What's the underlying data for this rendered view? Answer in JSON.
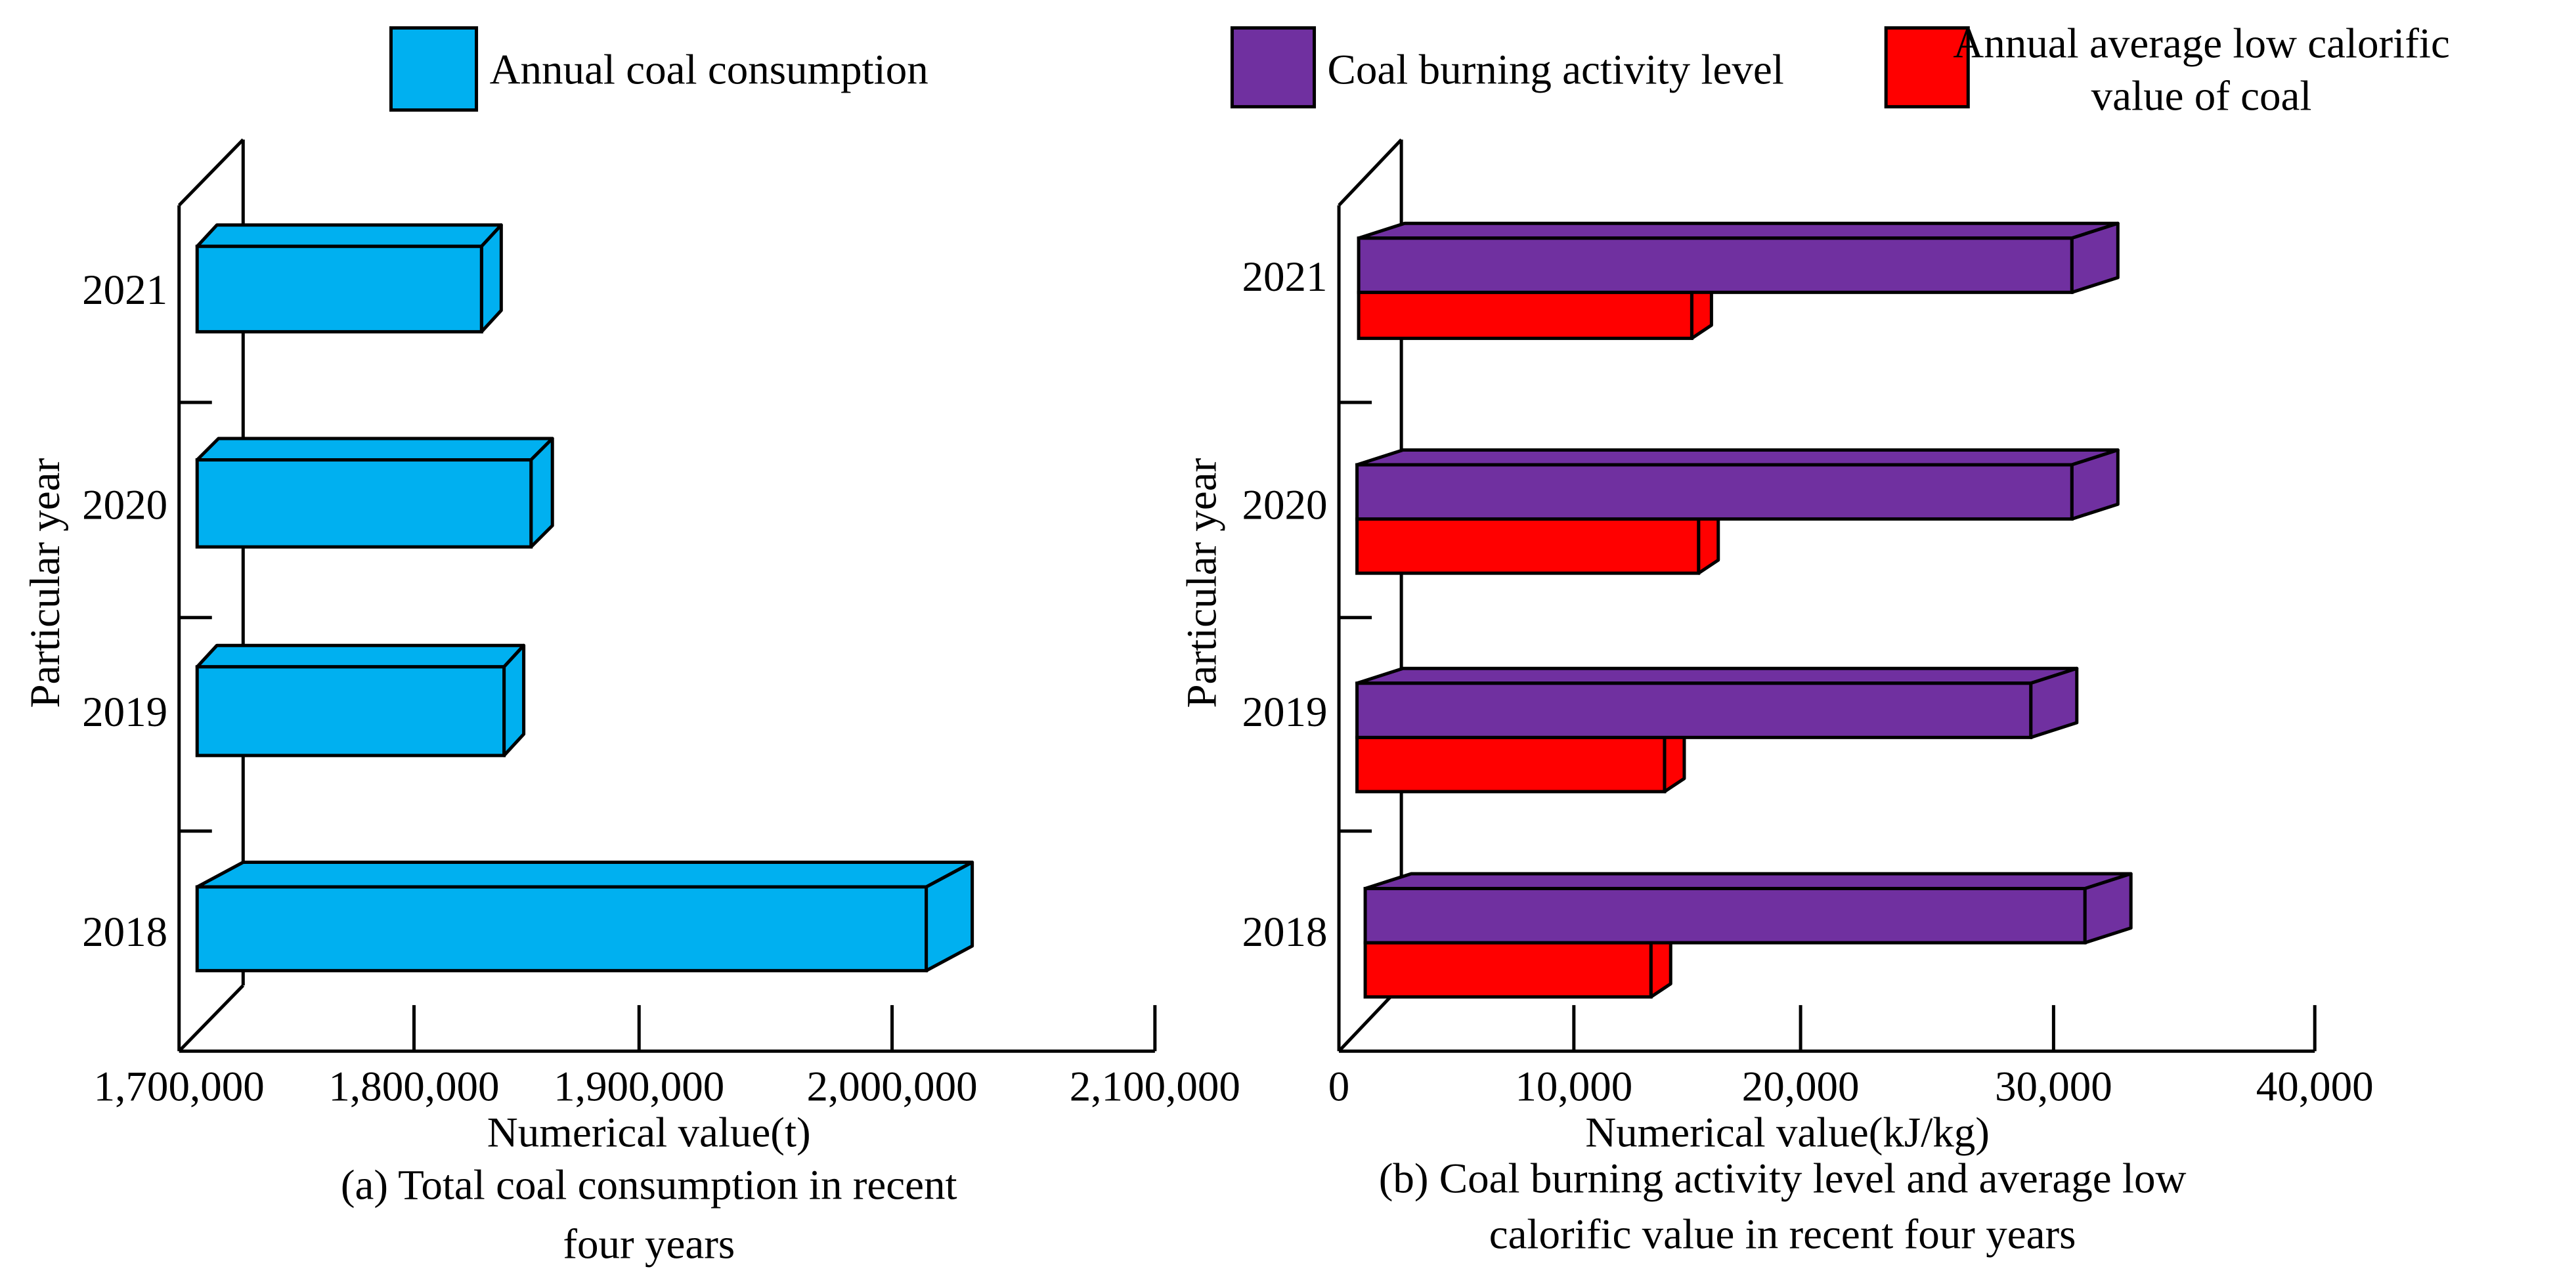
{
  "colors": {
    "coal_consumption": "#00B0F0",
    "activity_level": "#7030A0",
    "calorific_value": "#FF0000"
  },
  "chart_data": [
    {
      "type": "bar",
      "orientation": "horizontal",
      "style": "3d",
      "categories": [
        "2018",
        "2019",
        "2020",
        "2021"
      ],
      "series": [
        {
          "name": "Annual coal consumption",
          "values": [
            2013000,
            1840000,
            1852000,
            1830000
          ]
        }
      ],
      "xlabel": "Numerical value(t)",
      "ylabel": "Particular year",
      "xlim": [
        1700000,
        2100000
      ],
      "xticks": [
        "1,700,000",
        "1,800,000",
        "1,900,000",
        "2,000,000",
        "2,100,000"
      ],
      "caption": [
        "(a) Total coal consumption in recent",
        "four years"
      ],
      "legend": "top",
      "grid": false
    },
    {
      "type": "bar",
      "orientation": "horizontal",
      "style": "3d",
      "categories": [
        "2018",
        "2019",
        "2020",
        "2021"
      ],
      "series": [
        {
          "name": "Coal burning activity level",
          "values": [
            31200,
            29100,
            30700,
            30700
          ]
        },
        {
          "name_lines": [
            "Annual average low calorific",
            "value of coal"
          ],
          "values": [
            13400,
            14000,
            15500,
            15200
          ]
        }
      ],
      "xlabel": "Numerical value(kJ/kg)",
      "ylabel": "Particular year",
      "xlim": [
        0,
        40000
      ],
      "xticks": [
        "0",
        "10,000",
        "20,000",
        "30,000",
        "40,000"
      ],
      "caption": [
        "(b) Coal burning activity level and average low",
        "calorific value in recent four years"
      ],
      "legend": "top",
      "grid": false
    }
  ]
}
